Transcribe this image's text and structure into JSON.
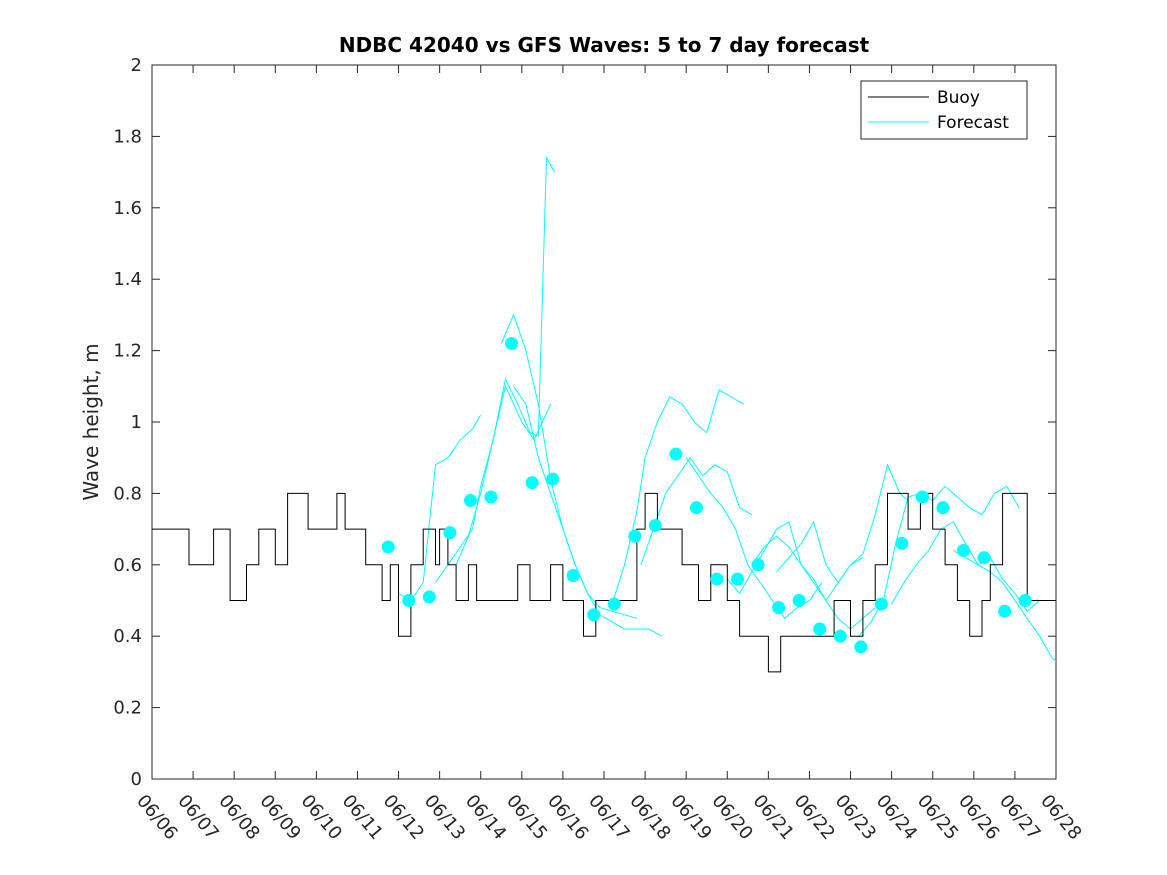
{
  "chart_data": {
    "type": "line",
    "title": "NDBC 42040 vs GFS Waves: 5 to 7 day forecast",
    "xlabel": "",
    "ylabel": "Wave height, m",
    "xlim": [
      0,
      22
    ],
    "ylim": [
      0,
      2
    ],
    "yticks": [
      0,
      0.2,
      0.4,
      0.6,
      0.8,
      1,
      1.2,
      1.4,
      1.6,
      1.8,
      2
    ],
    "ytick_labels": [
      "0",
      "0.2",
      "0.4",
      "0.6",
      "0.8",
      "1",
      "1.2",
      "1.4",
      "1.6",
      "1.8",
      "2"
    ],
    "xtick_labels": [
      "06/06",
      "06/07",
      "06/08",
      "06/09",
      "06/10",
      "06/11",
      "06/12",
      "06/13",
      "06/14",
      "06/15",
      "06/16",
      "06/17",
      "06/18",
      "06/19",
      "06/20",
      "06/21",
      "06/22",
      "06/23",
      "06/24",
      "06/25",
      "06/26",
      "06/27",
      "06/28"
    ],
    "grid": false,
    "legend": {
      "position": "top-right",
      "entries": [
        {
          "name": "Buoy",
          "color": "#000000"
        },
        {
          "name": "Forecast",
          "color": "#00ffff"
        }
      ]
    },
    "colors": {
      "buoy": "#000000",
      "forecast": "#00ffff"
    },
    "buoy": {
      "name": "Buoy",
      "x": [
        0,
        0.5,
        0.9,
        1.3,
        1.5,
        1.9,
        2.3,
        2.6,
        3.0,
        3.3,
        3.5,
        3.8,
        4.5,
        4.7,
        5.2,
        5.6,
        5.8,
        6.0,
        6.3,
        6.6,
        6.9,
        7.0,
        7.2,
        7.4,
        7.7,
        7.9,
        8.3,
        8.9,
        9.2,
        9.5,
        9.7,
        10.0,
        10.3,
        10.5,
        10.8,
        11.0,
        11.2,
        11.5,
        11.8,
        12.0,
        12.3,
        12.6,
        12.9,
        13.3,
        13.6,
        13.8,
        14.0,
        14.3,
        14.6,
        15.0,
        15.3,
        15.5,
        15.8,
        16.2,
        16.6,
        17.0,
        17.3,
        17.6,
        17.9,
        18.2,
        18.4,
        18.7,
        19.0,
        19.3,
        19.6,
        19.9,
        20.2,
        20.4,
        20.7,
        21.0,
        21.3,
        21.6,
        22.0
      ],
      "y": [
        0.7,
        0.7,
        0.6,
        0.6,
        0.7,
        0.5,
        0.6,
        0.7,
        0.6,
        0.8,
        0.8,
        0.7,
        0.8,
        0.7,
        0.6,
        0.5,
        0.6,
        0.4,
        0.6,
        0.7,
        0.6,
        0.7,
        0.6,
        0.5,
        0.6,
        0.5,
        0.5,
        0.6,
        0.5,
        0.5,
        0.6,
        0.5,
        0.5,
        0.4,
        0.5,
        0.5,
        0.5,
        0.5,
        0.7,
        0.8,
        0.7,
        0.7,
        0.6,
        0.5,
        0.6,
        0.6,
        0.5,
        0.4,
        0.4,
        0.3,
        0.4,
        0.4,
        0.4,
        0.4,
        0.5,
        0.4,
        0.5,
        0.6,
        0.8,
        0.8,
        0.7,
        0.8,
        0.7,
        0.6,
        0.5,
        0.4,
        0.5,
        0.6,
        0.8,
        0.8,
        0.5,
        0.5,
        0.5
      ]
    },
    "forecast_points": {
      "name": "Forecast",
      "x": [
        5.75,
        6.25,
        6.75,
        7.25,
        7.75,
        8.25,
        8.75,
        9.25,
        9.75,
        10.25,
        10.75,
        11.25,
        11.75,
        12.25,
        12.75,
        13.25,
        13.75,
        14.25,
        14.75,
        15.25,
        15.75,
        16.25,
        16.75,
        17.25,
        17.75,
        18.25,
        18.75,
        19.25,
        19.75,
        20.25,
        20.75,
        21.25
      ],
      "y": [
        0.65,
        0.5,
        0.51,
        0.69,
        0.78,
        0.79,
        1.22,
        0.83,
        0.84,
        0.57,
        0.46,
        0.49,
        0.68,
        0.71,
        0.91,
        0.76,
        0.56,
        0.56,
        0.6,
        0.48,
        0.5,
        0.42,
        0.4,
        0.37,
        0.49,
        0.66,
        0.79,
        0.76,
        0.64,
        0.62,
        0.47,
        0.5
      ]
    },
    "forecast_series": [
      {
        "x": [
          6.0,
          6.3,
          6.6,
          6.9,
          7.2,
          7.5,
          7.8,
          8.0
        ],
        "y": [
          0.52,
          0.5,
          0.55,
          0.88,
          0.9,
          0.95,
          0.98,
          1.02
        ]
      },
      {
        "x": [
          6.9,
          7.2,
          7.5,
          7.8,
          8.0,
          8.3,
          8.6,
          8.9,
          9.2,
          9.4,
          9.6,
          9.8
        ],
        "y": [
          0.55,
          0.6,
          0.65,
          0.7,
          0.82,
          0.95,
          1.12,
          1.05,
          0.97,
          0.96,
          1.74,
          1.7
        ]
      },
      {
        "x": [
          7.4,
          7.7,
          8.0,
          8.3,
          8.6,
          8.8,
          9.0,
          9.3,
          9.5,
          9.7
        ],
        "y": [
          0.6,
          0.68,
          0.8,
          0.95,
          1.1,
          1.05,
          1.0,
          0.95,
          1.0,
          1.05
        ]
      },
      {
        "x": [
          8.5,
          8.8,
          9.1,
          9.4,
          9.7,
          10.0,
          10.3,
          10.6,
          10.9,
          11.2,
          11.5,
          11.8
        ],
        "y": [
          1.22,
          1.3,
          1.2,
          1.05,
          0.84,
          0.7,
          0.6,
          0.52,
          0.48,
          0.47,
          0.46,
          0.45
        ]
      },
      {
        "x": [
          8.8,
          9.1,
          9.4,
          9.7,
          10.0,
          10.3,
          10.6,
          10.9,
          11.2,
          11.5,
          11.8,
          12.1,
          12.4
        ],
        "y": [
          1.1,
          1.05,
          0.9,
          0.8,
          0.7,
          0.6,
          0.52,
          0.46,
          0.44,
          0.42,
          0.42,
          0.42,
          0.4
        ]
      },
      {
        "x": [
          11.2,
          11.5,
          11.8,
          12.0,
          12.3,
          12.6,
          12.9,
          13.2,
          13.5,
          13.8,
          14.1,
          14.4
        ],
        "y": [
          0.49,
          0.6,
          0.75,
          0.9,
          1.0,
          1.07,
          1.05,
          1.0,
          0.97,
          1.09,
          1.07,
          1.05
        ]
      },
      {
        "x": [
          11.9,
          12.2,
          12.5,
          12.8,
          13.1,
          13.4,
          13.7,
          14.0,
          14.3,
          14.6
        ],
        "y": [
          0.6,
          0.7,
          0.8,
          0.85,
          0.9,
          0.85,
          0.88,
          0.86,
          0.76,
          0.74
        ]
      },
      {
        "x": [
          13.0,
          13.3,
          13.6,
          13.9,
          14.2,
          14.5,
          14.8,
          15.1,
          15.4,
          15.7,
          16.0,
          16.3
        ],
        "y": [
          0.9,
          0.85,
          0.8,
          0.76,
          0.7,
          0.6,
          0.55,
          0.5,
          0.45,
          0.48,
          0.5,
          0.55
        ]
      },
      {
        "x": [
          14.0,
          14.3,
          14.6,
          14.9,
          15.2,
          15.5,
          15.8,
          16.1,
          16.4,
          16.7,
          17.0,
          17.3
        ],
        "y": [
          0.56,
          0.52,
          0.58,
          0.64,
          0.7,
          0.72,
          0.6,
          0.56,
          0.5,
          0.55,
          0.6,
          0.62
        ]
      },
      {
        "x": [
          14.6,
          14.9,
          15.2,
          15.5,
          15.8,
          16.1,
          16.4,
          16.7,
          17.0,
          17.3,
          17.6
        ],
        "y": [
          0.6,
          0.65,
          0.68,
          0.65,
          0.6,
          0.55,
          0.5,
          0.45,
          0.42,
          0.45,
          0.48
        ]
      },
      {
        "x": [
          15.2,
          15.5,
          15.8,
          16.1,
          16.4,
          16.7,
          17.0,
          17.3,
          17.6,
          17.9,
          18.2,
          18.4
        ],
        "y": [
          0.58,
          0.62,
          0.66,
          0.72,
          0.6,
          0.55,
          0.6,
          0.63,
          0.74,
          0.88,
          0.8,
          0.78
        ]
      },
      {
        "x": [
          17.2,
          17.5,
          17.8,
          18.1,
          18.4,
          18.7,
          19.0,
          19.3,
          19.6,
          19.9,
          20.2,
          20.5,
          20.8,
          21.1
        ],
        "y": [
          0.4,
          0.44,
          0.5,
          0.66,
          0.79,
          0.8,
          0.78,
          0.82,
          0.79,
          0.76,
          0.74,
          0.8,
          0.82,
          0.76
        ]
      },
      {
        "x": [
          18.0,
          18.3,
          18.6,
          18.9,
          19.2,
          19.5,
          19.8,
          20.1,
          20.4,
          20.7,
          21.0,
          21.3,
          21.6,
          22.0
        ],
        "y": [
          0.49,
          0.55,
          0.6,
          0.64,
          0.7,
          0.72,
          0.66,
          0.6,
          0.62,
          0.56,
          0.52,
          0.47,
          0.5,
          0.5
        ]
      },
      {
        "x": [
          19.5,
          19.8,
          20.1,
          20.4,
          20.7,
          21.0,
          21.3,
          21.6,
          21.9,
          22.0
        ],
        "y": [
          0.64,
          0.62,
          0.6,
          0.58,
          0.55,
          0.5,
          0.45,
          0.4,
          0.34,
          0.33
        ]
      }
    ]
  }
}
